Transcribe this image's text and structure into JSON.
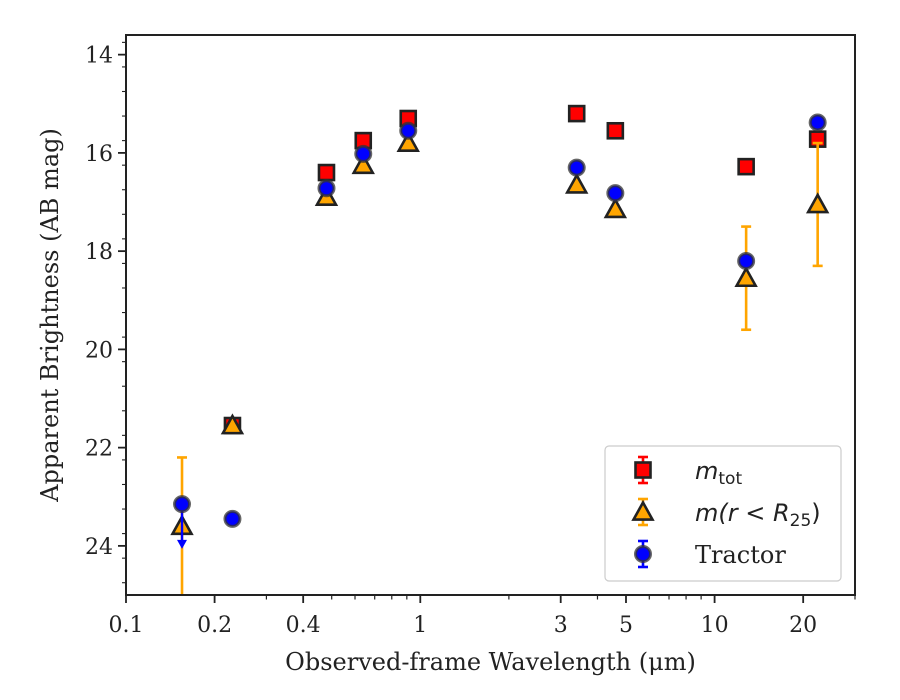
{
  "chart_data": {
    "type": "scatter",
    "xlabel": "Observed-frame Wavelength (μm)",
    "ylabel": "Apparent Brightness (AB mag)",
    "xscale": "log",
    "xlim": [
      0.1,
      30
    ],
    "ylim": [
      25,
      13.6
    ],
    "y_inverted": true,
    "x_ticks": [
      {
        "value": 0.1,
        "label": "0.1"
      },
      {
        "value": 0.2,
        "label": "0.2"
      },
      {
        "value": 0.4,
        "label": "0.4"
      },
      {
        "value": 1,
        "label": "1"
      },
      {
        "value": 3,
        "label": "3"
      },
      {
        "value": 5,
        "label": "5"
      },
      {
        "value": 10,
        "label": "10"
      },
      {
        "value": 20,
        "label": "20"
      }
    ],
    "y_ticks": [
      {
        "value": 14,
        "label": "14"
      },
      {
        "value": 16,
        "label": "16"
      },
      {
        "value": 18,
        "label": "18"
      },
      {
        "value": 20,
        "label": "20"
      },
      {
        "value": 22,
        "label": "22"
      },
      {
        "value": 24,
        "label": "24"
      }
    ],
    "legend_position": "bottom-right",
    "series": [
      {
        "name": "m_tot",
        "legend_label": "m",
        "legend_sub": "tot",
        "marker": "square",
        "color": "#ff0000",
        "points": [
          {
            "x": 0.23,
            "y": 21.55,
            "err": 0.05
          },
          {
            "x": 0.48,
            "y": 16.4,
            "err": 0.05
          },
          {
            "x": 0.64,
            "y": 15.75,
            "err": 0.05
          },
          {
            "x": 0.91,
            "y": 15.3,
            "err": 0.05
          },
          {
            "x": 3.4,
            "y": 15.2,
            "err": 0.05
          },
          {
            "x": 4.6,
            "y": 15.55,
            "err": 0.05
          },
          {
            "x": 12.8,
            "y": 16.28,
            "err": 0.05
          },
          {
            "x": 22.4,
            "y": 15.72,
            "err": 0.05
          }
        ]
      },
      {
        "name": "m(r<R25)",
        "legend_label": "m(r < R",
        "legend_sub": "25",
        "legend_suffix": ")",
        "marker": "triangle",
        "color": "#ffa500",
        "points": [
          {
            "x": 0.155,
            "y": 23.6,
            "err_low": 2.15,
            "err_high": 1.4
          },
          {
            "x": 0.23,
            "y": 21.55,
            "err": 0.05
          },
          {
            "x": 0.48,
            "y": 16.9,
            "err": 0.05
          },
          {
            "x": 0.64,
            "y": 16.25,
            "err": 0.05
          },
          {
            "x": 0.91,
            "y": 15.8,
            "err": 0.05
          },
          {
            "x": 3.4,
            "y": 16.65,
            "err": 0.05
          },
          {
            "x": 4.6,
            "y": 17.15,
            "err": 0.05
          },
          {
            "x": 12.8,
            "y": 18.55,
            "err": 1.05
          },
          {
            "x": 22.4,
            "y": 17.05,
            "err": 1.25
          }
        ]
      },
      {
        "name": "Tractor",
        "legend_label": "Tractor",
        "marker": "circle",
        "color": "#0000ff",
        "points": [
          {
            "x": 0.155,
            "y": 23.15,
            "upper_limit": true,
            "arrow_to": 24.0
          },
          {
            "x": 0.23,
            "y": 23.45,
            "err": 0.05
          },
          {
            "x": 0.48,
            "y": 16.72,
            "err": 0.05
          },
          {
            "x": 0.64,
            "y": 16.02,
            "err": 0.05
          },
          {
            "x": 0.91,
            "y": 15.55,
            "err": 0.05
          },
          {
            "x": 3.4,
            "y": 16.3,
            "err": 0.05
          },
          {
            "x": 4.6,
            "y": 16.82,
            "err": 0.05
          },
          {
            "x": 12.8,
            "y": 18.2,
            "err": 0.05
          },
          {
            "x": 22.4,
            "y": 15.38,
            "err": 0.05
          }
        ]
      }
    ]
  }
}
